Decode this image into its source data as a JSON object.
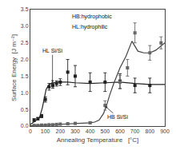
{
  "chart_data": {
    "type": "scatter",
    "xlabel": "Annealing Temperature   [°C]",
    "ylabel": "Surface Energy  [J m⁻²]",
    "xlim": [
      0,
      900
    ],
    "ylim": [
      0,
      3.5
    ],
    "xticks": [
      0,
      100,
      200,
      300,
      400,
      500,
      600,
      700,
      800,
      900
    ],
    "yticks": [
      {
        "value": 0.0,
        "label": "0.0"
      },
      0.5,
      {
        "value": 1.0,
        "label": "1.0"
      },
      1.5,
      {
        "value": 2.0,
        "label": "2.0"
      },
      2.5,
      {
        "value": 3.0,
        "label": "3.0"
      },
      3.5
    ],
    "grid": false,
    "annotations": [
      {
        "text": "HB:hydrophobic"
      },
      {
        "text": "HL:hydrophilic"
      },
      {
        "text": "HL Si/Si",
        "x": 148,
        "y": 1.3
      },
      {
        "text": "HB Si/Si",
        "x": 500,
        "y": 0.6
      }
    ],
    "series": [
      {
        "type": "line",
        "color": "#222222",
        "x": [
          0,
          20,
          40,
          60,
          80,
          95,
          105,
          115,
          125,
          140,
          155,
          170,
          185,
          200,
          250,
          300,
          400,
          500,
          600,
          700,
          800,
          900
        ],
        "values": [
          0.05,
          0.12,
          0.17,
          0.24,
          0.55,
          0.9,
          1.1,
          1.18,
          1.24,
          1.28,
          1.3,
          1.31,
          1.32,
          1.32,
          1.32,
          1.3,
          1.28,
          1.3,
          1.32,
          1.28,
          1.25,
          1.25
        ]
      },
      {
        "type": "line",
        "color": "#444444",
        "x": [
          0,
          25,
          50,
          100,
          150,
          200,
          250,
          300,
          350,
          400,
          430,
          460,
          490,
          510,
          530,
          560,
          600,
          640,
          680,
          720,
          760,
          800,
          840,
          875,
          900
        ],
        "values": [
          0.01,
          0.02,
          0.02,
          0.03,
          0.04,
          0.06,
          0.07,
          0.08,
          0.09,
          0.1,
          0.12,
          0.18,
          0.38,
          0.62,
          0.92,
          1.3,
          1.75,
          2.1,
          2.55,
          2.25,
          2.2,
          2.2,
          2.28,
          2.4,
          2.5
        ]
      },
      {
        "type": "scatter",
        "marker": "square",
        "color": "#222222",
        "x": [
          25,
          50,
          75,
          100,
          125,
          150,
          175,
          200,
          250,
          300,
          400,
          500,
          600,
          700,
          800
        ],
        "values": [
          0.18,
          0.22,
          0.3,
          0.8,
          1.18,
          1.22,
          1.28,
          1.32,
          1.62,
          1.5,
          1.32,
          1.32,
          1.35,
          1.22,
          1.22
        ],
        "error": [
          0.04,
          0.04,
          0.05,
          0.08,
          0.1,
          0.08,
          0.08,
          0.1,
          0.38,
          0.32,
          0.28,
          0.28,
          0.22,
          0.22,
          0.22
        ]
      },
      {
        "type": "scatter",
        "marker": "square",
        "color": "#666666",
        "x": [
          25,
          50,
          75,
          100,
          125,
          150,
          175,
          200,
          250,
          300,
          400,
          500,
          600,
          650,
          700,
          800,
          875
        ],
        "values": [
          0.02,
          0.02,
          0.03,
          0.03,
          0.04,
          0.04,
          0.05,
          0.06,
          0.07,
          0.08,
          0.1,
          0.62,
          1.32,
          1.75,
          2.8,
          2.2,
          2.5
        ],
        "error": [
          0.01,
          0.01,
          0.01,
          0.01,
          0.01,
          0.01,
          0.01,
          0.01,
          0.02,
          0.02,
          0.03,
          0.14,
          0.2,
          0.25,
          0.3,
          0.22,
          0.18
        ]
      }
    ]
  }
}
